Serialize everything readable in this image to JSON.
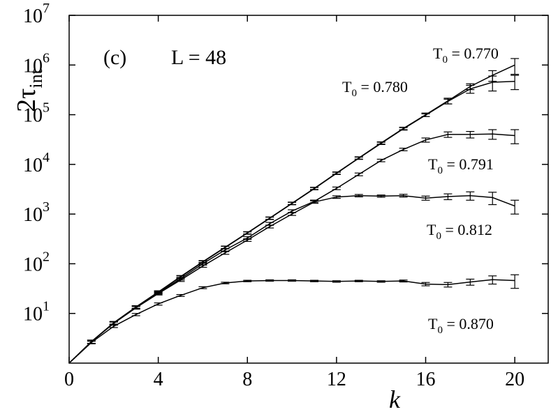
{
  "chart_data": {
    "type": "line",
    "ylabel": "2τ",
    "ylabel_sub": "int",
    "xlabel": "k",
    "annotations": [
      "(c)",
      "L = 48"
    ],
    "log_y": true,
    "color": "#000000",
    "x": [
      0,
      1,
      2,
      3,
      4,
      5,
      6,
      7,
      8,
      9,
      10,
      11,
      12,
      13,
      14,
      15,
      16,
      17,
      18,
      19,
      20
    ],
    "xlim": [
      0,
      21.5
    ],
    "xticks": [
      0,
      4,
      8,
      12,
      16,
      20
    ],
    "ylim": [
      1,
      10000000
    ],
    "yticks": [
      {
        "value": 10,
        "label": "10",
        "sup": "1"
      },
      {
        "value": 100,
        "label": "10",
        "sup": "2"
      },
      {
        "value": 1000,
        "label": "10",
        "sup": "3"
      },
      {
        "value": 10000,
        "label": "10",
        "sup": "4"
      },
      {
        "value": 100000,
        "label": "10",
        "sup": "5"
      },
      {
        "value": 1000000,
        "label": "10",
        "sup": "6"
      },
      {
        "value": 10000000,
        "label": "10",
        "sup": "7"
      }
    ],
    "series": [
      {
        "name": "T0 = 0.770",
        "values": [
          1,
          2.7,
          6.5,
          13.5,
          27,
          55,
          110,
          215,
          420,
          830,
          1650,
          3300,
          6700,
          13500,
          27000,
          53000,
          100000,
          190000,
          370000,
          620000,
          1000000
        ],
        "errors": [
          null,
          0.2,
          0.4,
          0.8,
          1.5,
          3,
          6,
          12,
          22,
          45,
          90,
          170,
          350,
          700,
          1400,
          3000,
          8000,
          25000,
          50000,
          150000,
          350000
        ]
      },
      {
        "name": "T0 = 0.780",
        "values": [
          1,
          2.7,
          6.4,
          13.4,
          27,
          54,
          108,
          212,
          415,
          820,
          1630,
          3250,
          6600,
          13300,
          26500,
          52000,
          98000,
          185000,
          330000,
          450000,
          470000
        ],
        "errors": [
          null,
          0.2,
          0.4,
          0.8,
          1.5,
          3,
          6,
          12,
          22,
          45,
          90,
          170,
          350,
          700,
          1400,
          3000,
          6000,
          20000,
          60000,
          150000,
          150000
        ]
      },
      {
        "name": "T0 = 0.791",
        "values": [
          1,
          2.7,
          6.4,
          13.3,
          26,
          50,
          100,
          190,
          330,
          640,
          1150,
          1800,
          3300,
          6300,
          12000,
          20000,
          31000,
          40000,
          40000,
          41000,
          38000
        ],
        "errors": [
          null,
          0.2,
          0.4,
          0.8,
          1.5,
          3,
          6,
          10,
          20,
          40,
          70,
          110,
          200,
          400,
          700,
          1200,
          3000,
          5000,
          6000,
          9000,
          12000
        ]
      },
      {
        "name": "T0 = 0.812",
        "values": [
          1,
          2.7,
          6.3,
          13,
          25,
          47,
          90,
          165,
          300,
          560,
          1000,
          1750,
          2200,
          2350,
          2300,
          2350,
          2100,
          2250,
          2350,
          2150,
          1450
        ],
        "errors": [
          null,
          0.2,
          0.4,
          0.8,
          1.5,
          3,
          5,
          10,
          18,
          35,
          60,
          100,
          130,
          130,
          120,
          150,
          200,
          300,
          450,
          600,
          450
        ]
      },
      {
        "name": "T0 = 0.870",
        "values": [
          1,
          2.6,
          5.5,
          9.5,
          15.5,
          23,
          33,
          41,
          45,
          46,
          46,
          45,
          44,
          45,
          44,
          45,
          39,
          38,
          43,
          48,
          46
        ],
        "errors": [
          null,
          0.15,
          0.3,
          0.5,
          0.8,
          1,
          1.5,
          1.5,
          1.5,
          1.5,
          1.5,
          1.5,
          1.5,
          1.5,
          1.5,
          2,
          3,
          4,
          6,
          9,
          14
        ]
      }
    ]
  }
}
